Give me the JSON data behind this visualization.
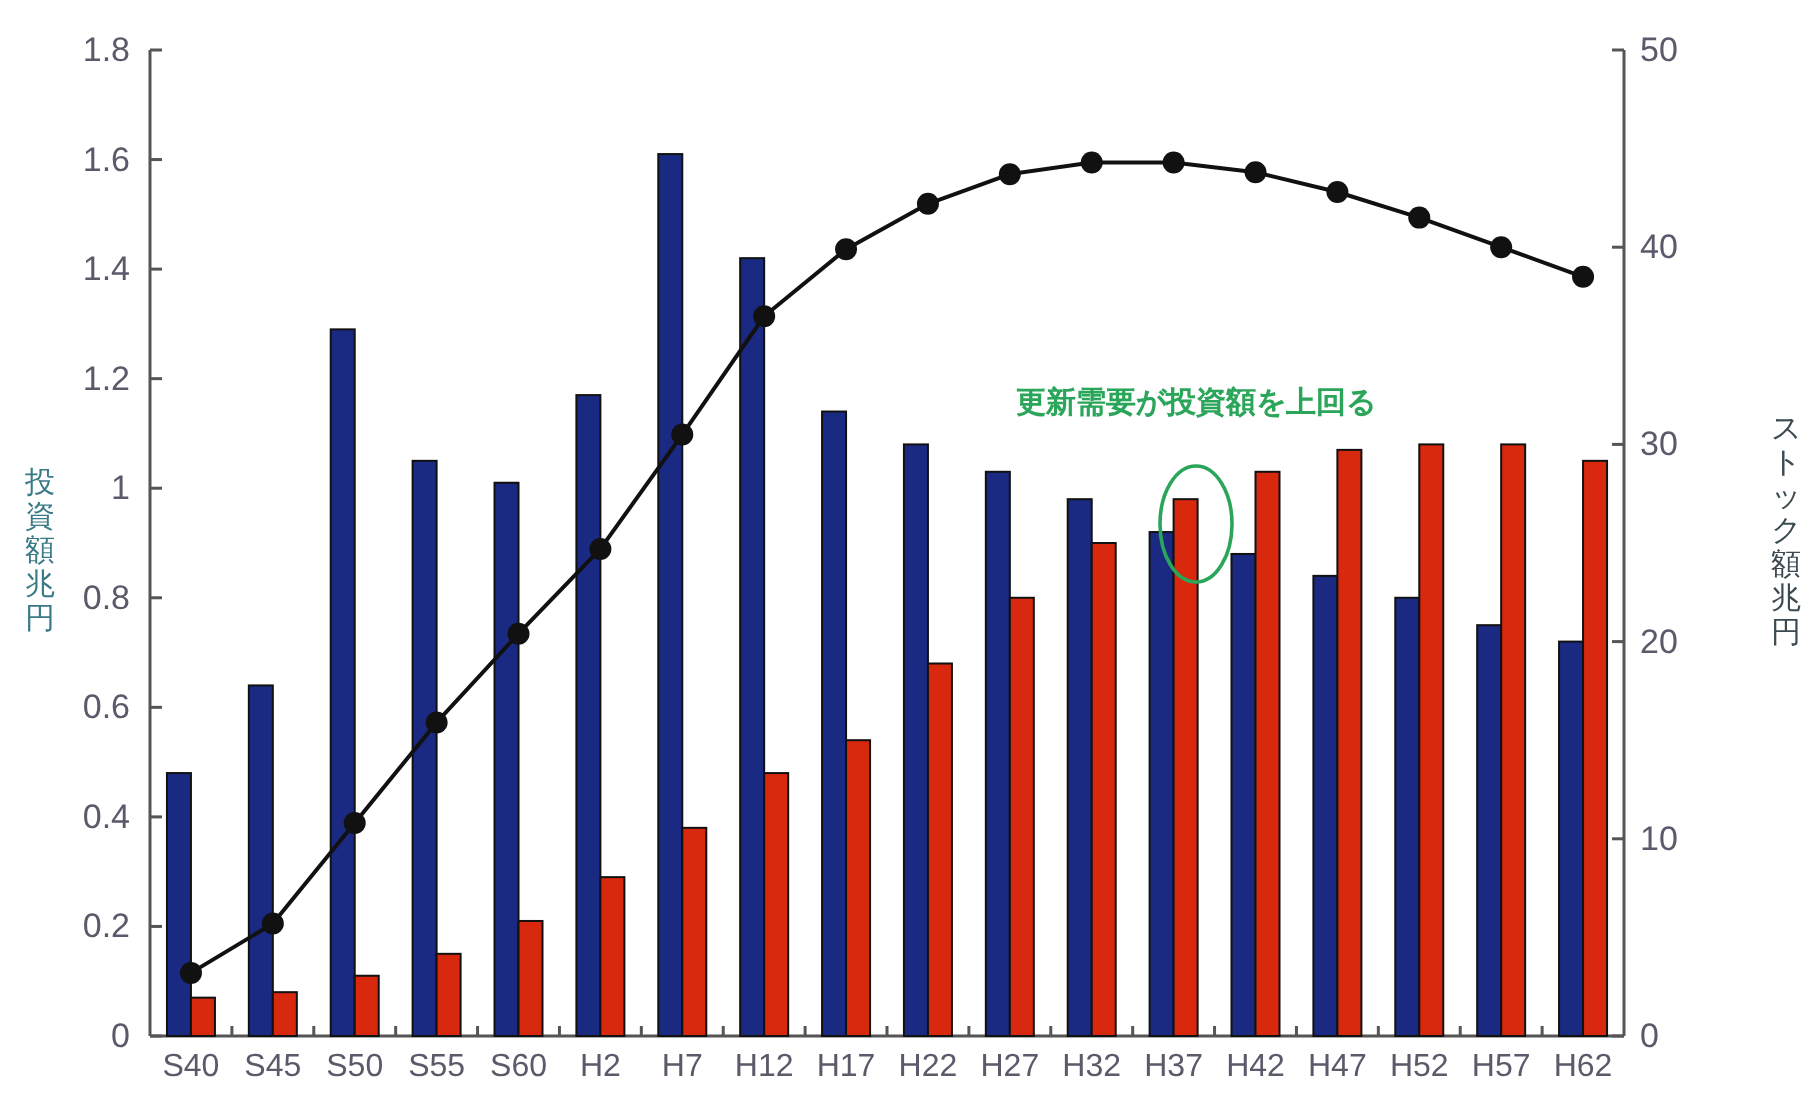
{
  "chart_data": {
    "type": "bar",
    "categories": [
      "S40",
      "S45",
      "S50",
      "S55",
      "S60",
      "H2",
      "H7",
      "H12",
      "H17",
      "H22",
      "H27",
      "H32",
      "H37",
      "H42",
      "H47",
      "H52",
      "H57",
      "H62"
    ],
    "series": [
      {
        "type": "bar",
        "color": "#1a2a82",
        "axis": "y",
        "values": [
          0.48,
          0.64,
          1.29,
          1.05,
          1.01,
          1.17,
          1.61,
          1.42,
          1.14,
          1.08,
          1.03,
          0.98,
          0.92,
          0.88,
          0.84,
          0.8,
          0.75,
          0.72
        ]
      },
      {
        "type": "bar",
        "color": "#d8290f",
        "axis": "y",
        "values": [
          0.07,
          0.08,
          0.11,
          0.15,
          0.21,
          0.29,
          0.38,
          0.48,
          0.54,
          0.68,
          0.8,
          0.9,
          0.98,
          1.03,
          1.07,
          1.08,
          1.08,
          1.05
        ]
      },
      {
        "type": "line",
        "color": "#111111",
        "axis": "y2",
        "marker": "circle",
        "values": [
          3.2,
          5.7,
          10.8,
          15.9,
          20.4,
          24.7,
          30.5,
          36.5,
          39.9,
          42.2,
          43.7,
          44.3,
          44.3,
          43.8,
          42.8,
          41.5,
          40.0,
          38.5
        ]
      }
    ],
    "ylabel": "投資額兆円",
    "y2label": "ストック額兆円",
    "ylim": [
      0,
      1.8
    ],
    "yticks": [
      0,
      0.2,
      0.4,
      0.6,
      0.8,
      1,
      1.2,
      1.4,
      1.6,
      1.8
    ],
    "y2lim": [
      0,
      50
    ],
    "y2ticks": [
      0,
      10,
      20,
      30,
      40,
      50
    ],
    "annotations": [
      "更新需要が投資額を上回る"
    ]
  }
}
